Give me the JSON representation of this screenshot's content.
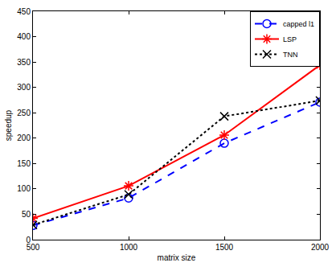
{
  "chart_data": {
    "type": "line",
    "x_label": "matrix size",
    "y_label": "speedup",
    "x": [
      500,
      1000,
      1500,
      2000
    ],
    "xlim": [
      500,
      2000
    ],
    "xticks": [
      500,
      1000,
      1500,
      2000
    ],
    "ylim": [
      0,
      450
    ],
    "yticks": [
      0,
      50,
      100,
      150,
      200,
      250,
      300,
      350,
      400,
      450
    ],
    "grid": false,
    "legend": "top-right",
    "series": [
      {
        "name": "capped l1",
        "color": "#0000ff",
        "line_style": "dash",
        "marker": "circle",
        "values": [
          28,
          82,
          190,
          271
        ]
      },
      {
        "name": "LSP",
        "color": "#ff0000",
        "line_style": "solid",
        "marker": "asterisk",
        "values": [
          42,
          106,
          206,
          344
        ]
      },
      {
        "name": "TNN",
        "color": "#000000",
        "line_style": "dot",
        "marker": "x",
        "values": [
          29,
          89,
          243,
          274
        ]
      }
    ]
  }
}
